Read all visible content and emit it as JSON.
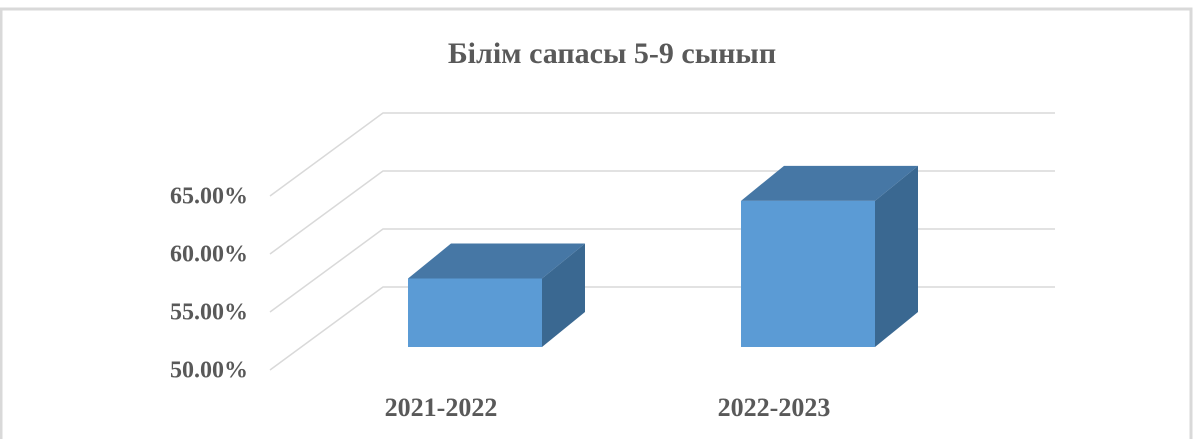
{
  "chart_data": {
    "type": "bar3d",
    "title": "Білім сапасы 5-9 сынып",
    "categories": [
      "2021-2022",
      "2022-2023"
    ],
    "values": [
      55.9,
      62.6
    ],
    "color": "#5b9bd5",
    "ylim": [
      50,
      65
    ],
    "yticks": [
      {
        "value": 50,
        "label": "50.00%"
      },
      {
        "value": 55,
        "label": "55.00%"
      },
      {
        "value": 60,
        "label": "60.00%"
      },
      {
        "value": 65,
        "label": "65.00%"
      }
    ],
    "grid": true
  }
}
